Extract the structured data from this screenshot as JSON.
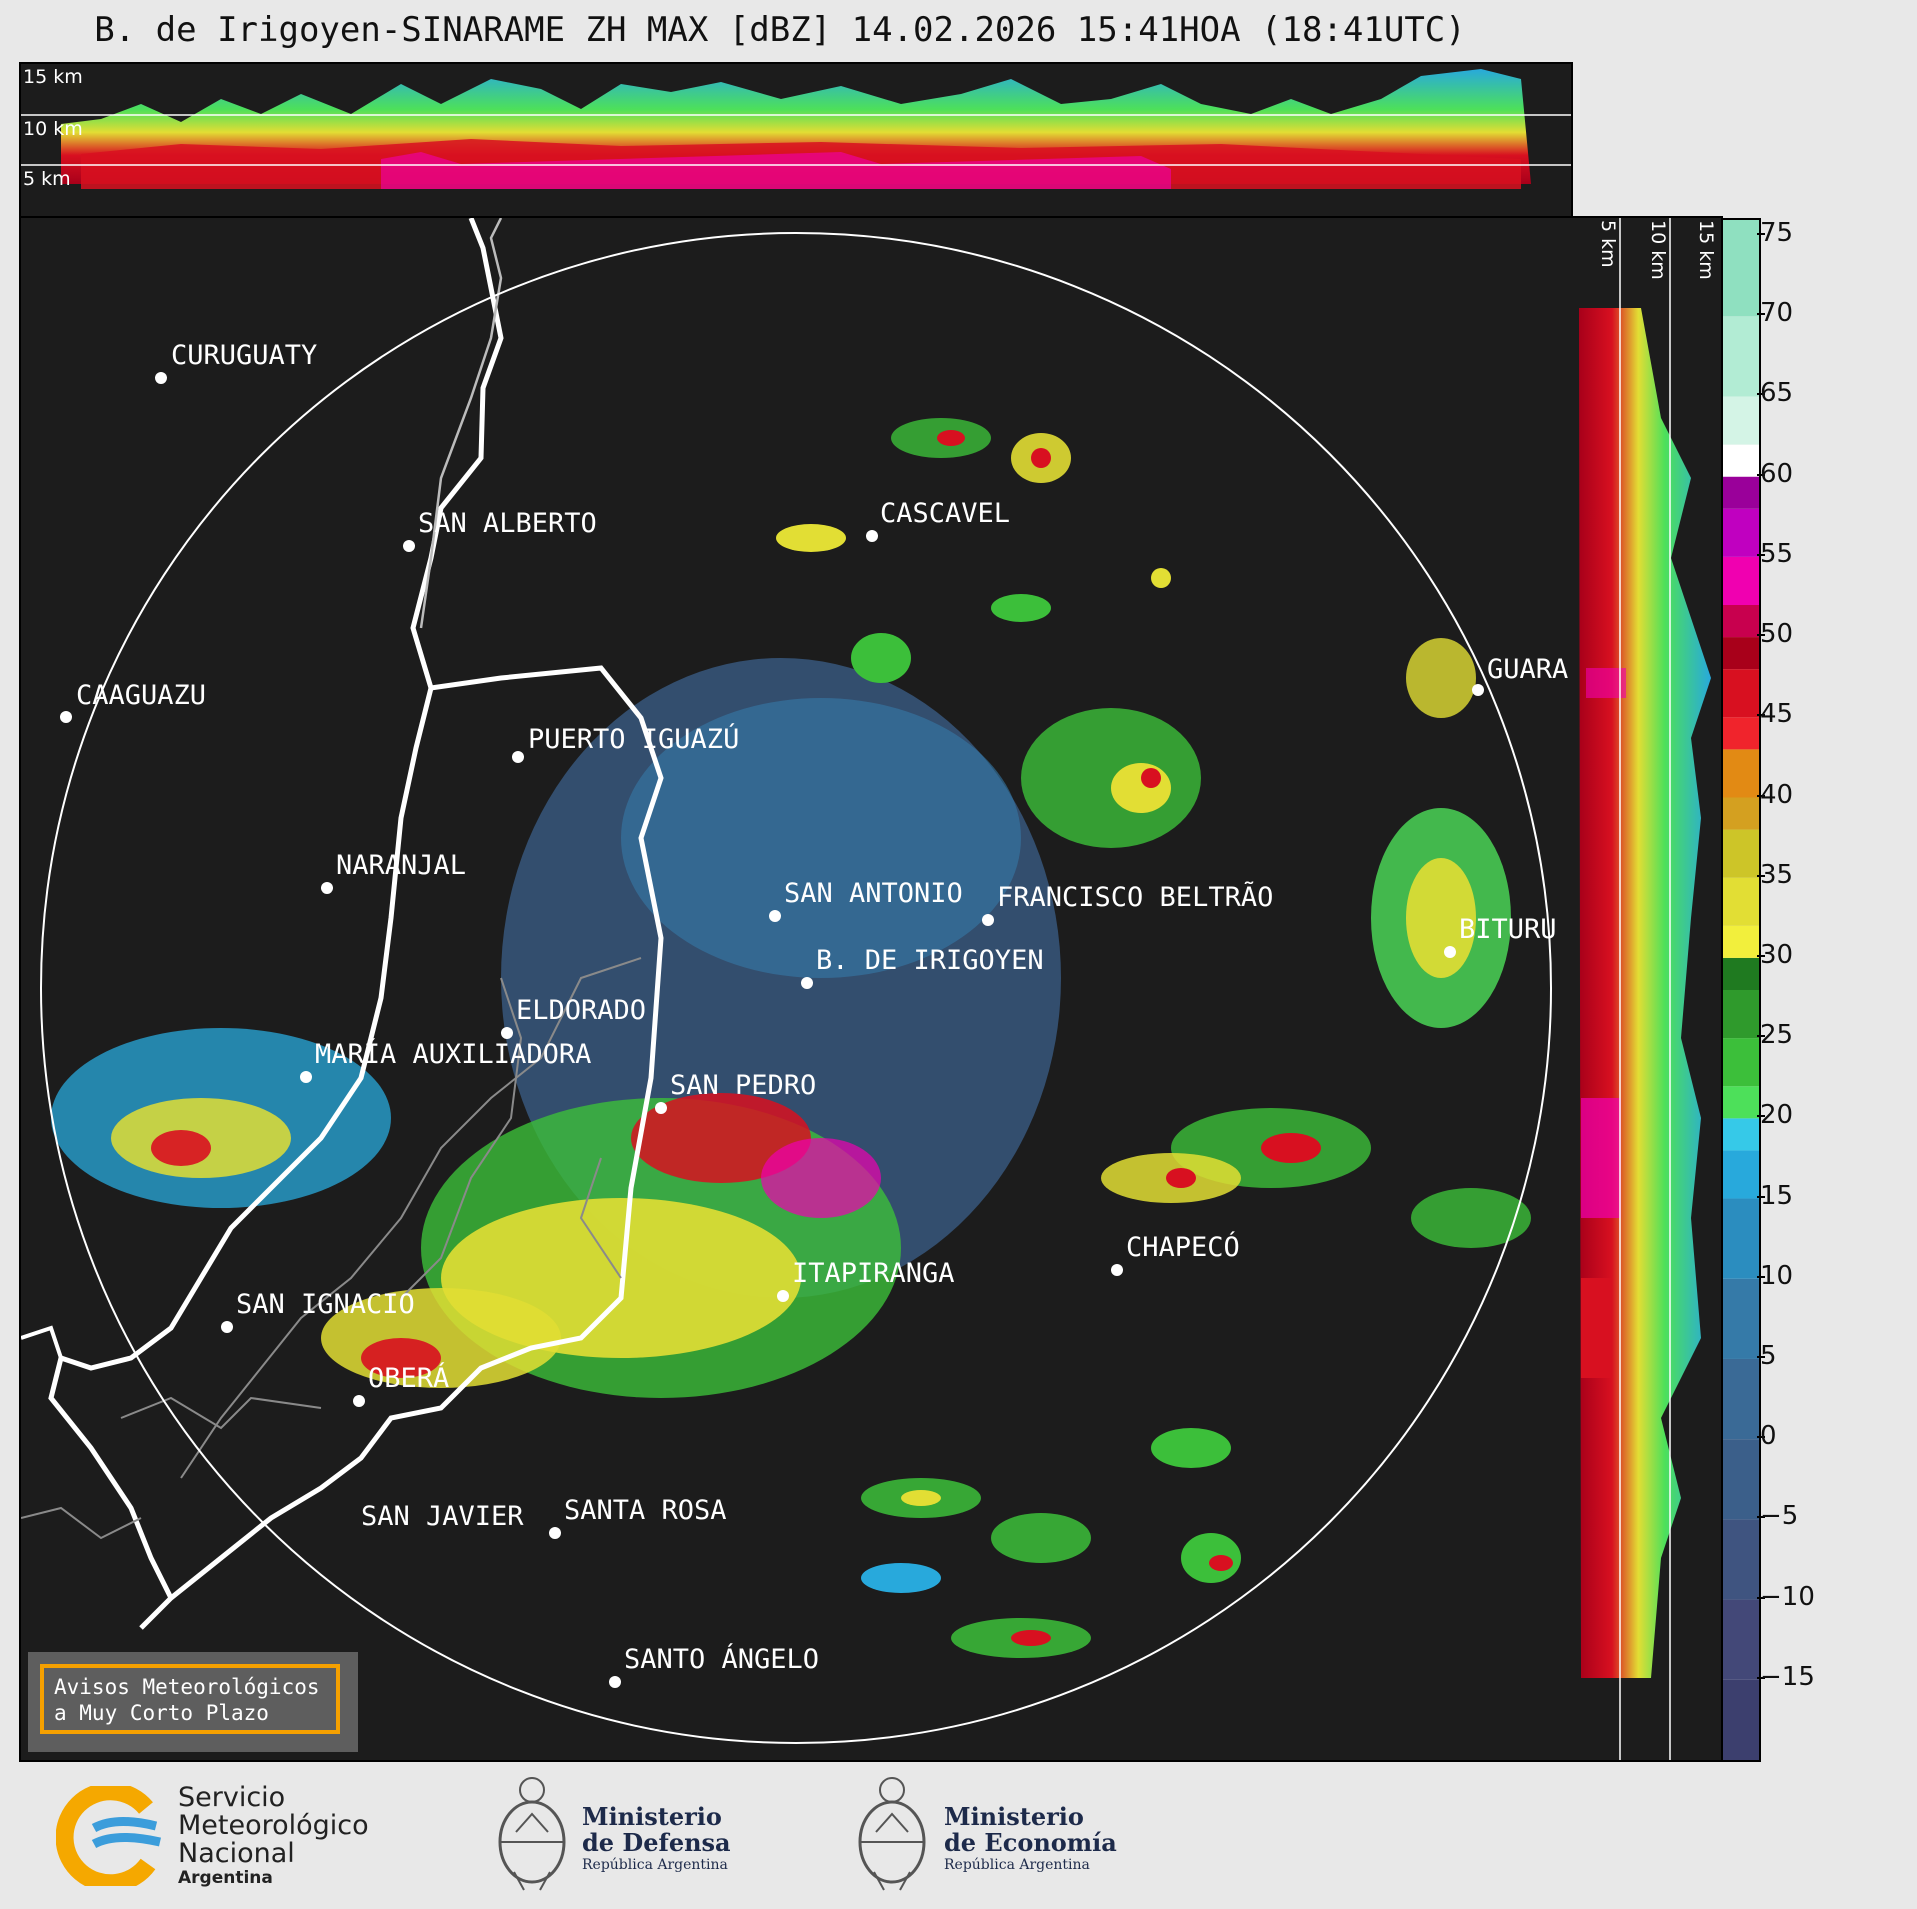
{
  "title": "B. de Irigoyen-SINARAME ZH MAX [dBZ] 14.02.2026 15:41HOA (18:41UTC)",
  "height_labels": [
    "15 km",
    "10 km",
    "5 km"
  ],
  "side_height_labels": [
    "5 km",
    "10 km",
    "15 km"
  ],
  "colorbar": {
    "ticks": [
      "75",
      "70",
      "65",
      "60",
      "55",
      "50",
      "45",
      "40",
      "35",
      "30",
      "25",
      "20",
      "15",
      "10",
      "5",
      "0",
      "−5",
      "−10",
      "−15"
    ],
    "tick_values": [
      75,
      70,
      65,
      60,
      55,
      50,
      45,
      40,
      35,
      30,
      25,
      20,
      15,
      10,
      5,
      0,
      -5,
      -10,
      -15
    ],
    "range": [
      -20,
      76
    ],
    "colors": [
      {
        "from": -20,
        "to": -15,
        "color": "#3c3f6e"
      },
      {
        "from": -15,
        "to": -10,
        "color": "#434878"
      },
      {
        "from": -10,
        "to": -5,
        "color": "#3f5480"
      },
      {
        "from": -5,
        "to": 0,
        "color": "#3b5f8a"
      },
      {
        "from": 0,
        "to": 5,
        "color": "#3a6a96"
      },
      {
        "from": 5,
        "to": 10,
        "color": "#357aa8"
      },
      {
        "from": 10,
        "to": 15,
        "color": "#2b8dbf"
      },
      {
        "from": 15,
        "to": 18,
        "color": "#28a9dc"
      },
      {
        "from": 18,
        "to": 20,
        "color": "#36c9e8"
      },
      {
        "from": 20,
        "to": 22,
        "color": "#4de05a"
      },
      {
        "from": 22,
        "to": 25,
        "color": "#3cbf3a"
      },
      {
        "from": 25,
        "to": 28,
        "color": "#2f9a2c"
      },
      {
        "from": 28,
        "to": 30,
        "color": "#1f7a20"
      },
      {
        "from": 30,
        "to": 32,
        "color": "#f2ef3c"
      },
      {
        "from": 32,
        "to": 35,
        "color": "#e2de34"
      },
      {
        "from": 35,
        "to": 38,
        "color": "#cdc528"
      },
      {
        "from": 38,
        "to": 40,
        "color": "#d4a020"
      },
      {
        "from": 40,
        "to": 43,
        "color": "#e28a14"
      },
      {
        "from": 43,
        "to": 45,
        "color": "#f0242c"
      },
      {
        "from": 45,
        "to": 48,
        "color": "#d81020"
      },
      {
        "from": 48,
        "to": 50,
        "color": "#a8001a"
      },
      {
        "from": 50,
        "to": 52,
        "color": "#c8004e"
      },
      {
        "from": 52,
        "to": 55,
        "color": "#f000b0"
      },
      {
        "from": 55,
        "to": 58,
        "color": "#c000c0"
      },
      {
        "from": 58,
        "to": 60,
        "color": "#9a009a"
      },
      {
        "from": 60,
        "to": 62,
        "color": "#ffffff"
      },
      {
        "from": 62,
        "to": 65,
        "color": "#d4f4e6"
      },
      {
        "from": 65,
        "to": 70,
        "color": "#b2ecd4"
      },
      {
        "from": 70,
        "to": 76,
        "color": "#8fe0c0"
      }
    ]
  },
  "places": [
    {
      "name": "CURUGUATY"
    },
    {
      "name": "SAN ALBERTO"
    },
    {
      "name": "CAAGUAZU"
    },
    {
      "name": "PUERTO IGUAZÚ"
    },
    {
      "name": "NARANJAL"
    },
    {
      "name": "CASCAVEL"
    },
    {
      "name": "GUARA"
    },
    {
      "name": "SAN ANTONIO"
    },
    {
      "name": "FRANCISCO BELTRÃO"
    },
    {
      "name": "B. DE IRIGOYEN"
    },
    {
      "name": "BITURU"
    },
    {
      "name": "ELDORADO"
    },
    {
      "name": "MARÍA AUXILIADORA"
    },
    {
      "name": "SAN PEDRO"
    },
    {
      "name": "ITAPIRANGA"
    },
    {
      "name": "CHAPECÓ"
    },
    {
      "name": "SAN IGNACIO"
    },
    {
      "name": "OBERÁ"
    },
    {
      "name": "SAN JAVIER"
    },
    {
      "name": "SANTA ROSA"
    },
    {
      "name": "SANTO ÁNGELO"
    }
  ],
  "aviso": {
    "line1": "Avisos Meteorológicos",
    "line2": "a Muy Corto Plazo"
  },
  "footer": {
    "smn": {
      "line1": "Servicio",
      "line2": "Meteorológico",
      "line3": "Nacional",
      "line4": "Argentina"
    },
    "defensa": {
      "line1": "Ministerio",
      "line2": "de Defensa",
      "line3": "República Argentina"
    },
    "economia": {
      "line1": "Ministerio",
      "line2": "de Economía",
      "line3": "República Argentina"
    }
  }
}
